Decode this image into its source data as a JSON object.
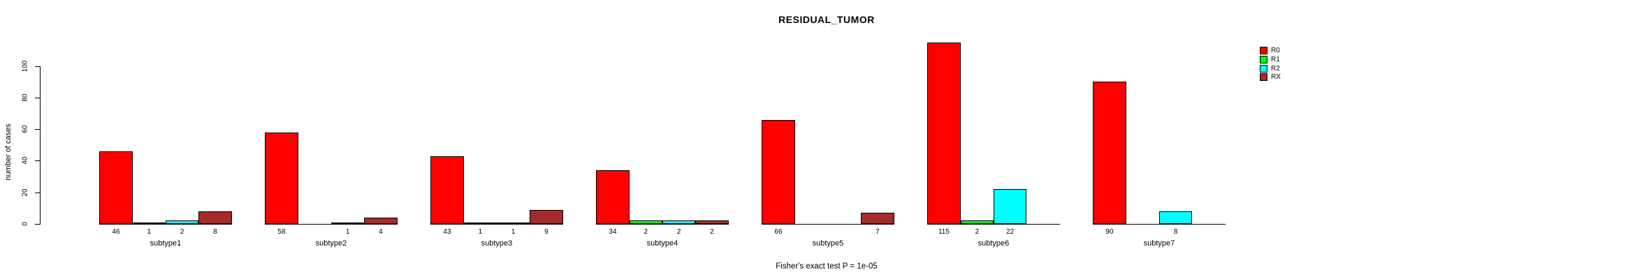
{
  "window": {
    "background": "#FFFFFF"
  },
  "chart_data": {
    "type": "bar",
    "title": "RESIDUAL_TUMOR",
    "ylabel": "number of cases",
    "xlabel": "",
    "footnote": "Fisher's exact test P = 1e-05",
    "ylim": [
      0,
      100
    ],
    "yticks": [
      0,
      20,
      40,
      60,
      80,
      100
    ],
    "grid": false,
    "legend_position": "top-right",
    "bar_value_labels": "numeric value printed under each non-zero bar",
    "categories": [
      "subtype1",
      "subtype2",
      "subtype3",
      "subtype4",
      "subtype5",
      "subtype6",
      "subtype7"
    ],
    "series": [
      {
        "name": "R0",
        "color": "#FF0000",
        "values": [
          46,
          58,
          43,
          34,
          66,
          115,
          90
        ]
      },
      {
        "name": "R1",
        "color": "#00FF00",
        "values": [
          1,
          0,
          1,
          2,
          0,
          2,
          0
        ]
      },
      {
        "name": "R2",
        "color": "#00FFFF",
        "values": [
          2,
          1,
          1,
          2,
          0,
          22,
          8
        ]
      },
      {
        "name": "RX",
        "color": "#A52A2A",
        "values": [
          8,
          4,
          9,
          2,
          7,
          0,
          0
        ]
      }
    ]
  }
}
